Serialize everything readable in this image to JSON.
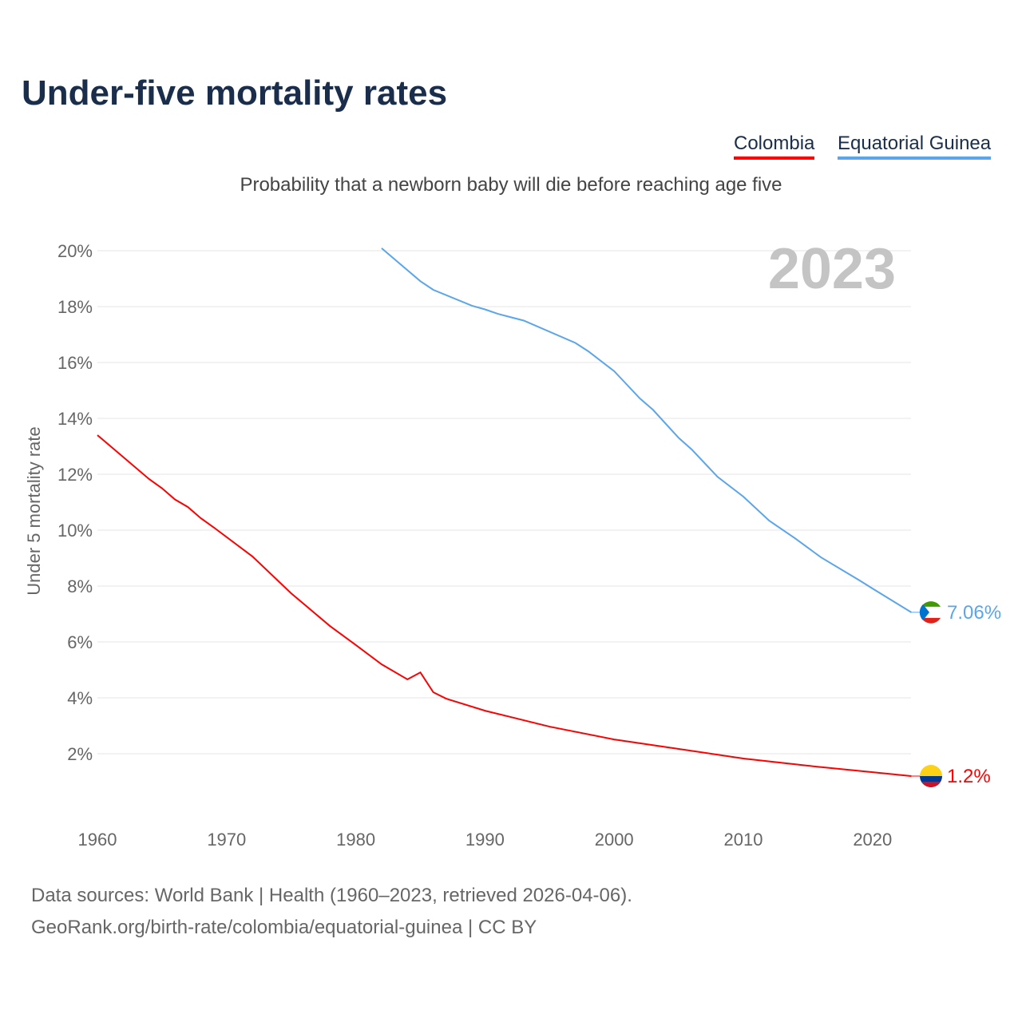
{
  "title": "Under-five mortality rates",
  "subtitle": "Probability that a newborn baby will die before reaching age five",
  "year_label": "2023",
  "footer": {
    "line1": "Data sources: World Bank | Health (1960–2023, retrieved 2026-04-06).",
    "line2": "GeoRank.org/birth-rate/colombia/equatorial-guinea | CC BY"
  },
  "chart_data": {
    "type": "line",
    "title": "Under-five mortality rates",
    "ylabel": "Under 5 mortality rate",
    "xlabel": "",
    "xlim": [
      1960,
      2023
    ],
    "ylim": [
      0,
      20
    ],
    "xticks": [
      "1960",
      "1970",
      "1980",
      "1990",
      "2000",
      "2010",
      "2020"
    ],
    "yticks": [
      "2%",
      "4%",
      "6%",
      "8%",
      "10%",
      "12%",
      "14%",
      "16%",
      "18%",
      "20%"
    ],
    "legend_position": "top-right",
    "series": [
      {
        "name": "Colombia",
        "color": "#ff0000",
        "end_label": "1.2%",
        "x": [
          1960,
          1964,
          1965,
          1966,
          1967,
          1968,
          1969,
          1972,
          1975,
          1978,
          1980,
          1982,
          1984,
          1985,
          1986,
          1987,
          1990,
          1995,
          2000,
          2005,
          2010,
          2015,
          2020,
          2023
        ],
        "y": [
          13.4,
          11.83,
          11.5,
          11.1,
          10.83,
          10.43,
          10.1,
          9.06,
          7.74,
          6.57,
          5.89,
          5.2,
          4.66,
          4.91,
          4.2,
          3.97,
          3.54,
          2.97,
          2.51,
          2.17,
          1.83,
          1.57,
          1.34,
          1.2
        ]
      },
      {
        "name": "Equatorial Guinea",
        "color": "#5aa5ec",
        "end_label": "7.06%",
        "x": [
          1982,
          1985,
          1986,
          1989,
          1990,
          1991,
          1993,
          1997,
          1998,
          2000,
          2001,
          2002,
          2003,
          2005,
          2006,
          2008,
          2010,
          2012,
          2014,
          2016,
          2019,
          2020,
          2023
        ],
        "y": [
          20.09,
          18.91,
          18.6,
          18.03,
          17.9,
          17.74,
          17.5,
          16.7,
          16.4,
          15.69,
          15.2,
          14.71,
          14.31,
          13.3,
          12.89,
          11.91,
          11.2,
          10.34,
          9.71,
          9.03,
          8.2,
          7.91,
          7.06
        ]
      }
    ]
  }
}
